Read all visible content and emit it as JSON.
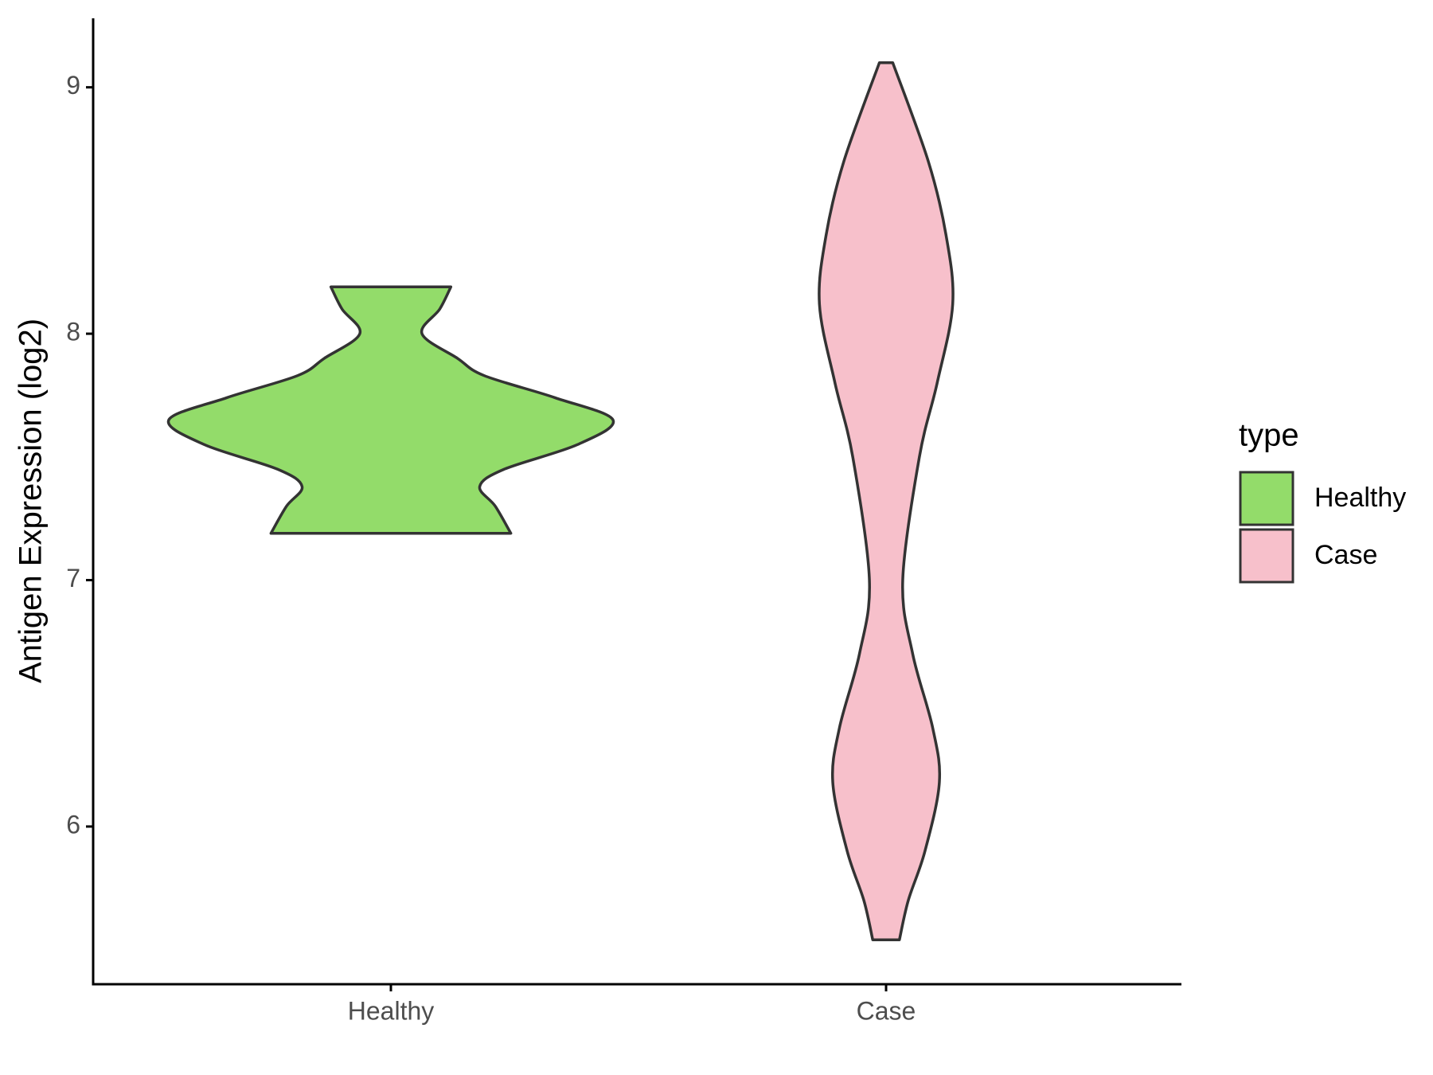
{
  "chart_data": {
    "type": "violin",
    "y_label": "Antigen Expression (log2)",
    "categories": [
      "Healthy",
      "Case"
    ],
    "legend_title": "type",
    "legend": "right",
    "ylim": [
      5.36,
      9.28
    ],
    "yticks": [
      6,
      7,
      8,
      9
    ],
    "series": [
      {
        "name": "Healthy",
        "color": "#93dc6a",
        "y": [
          8.19,
          8.1,
          8.0,
          7.9,
          7.83,
          7.74,
          7.65,
          7.55,
          7.45,
          7.38,
          7.3,
          7.19
        ],
        "width": [
          0.27,
          0.22,
          0.14,
          0.3,
          0.42,
          0.74,
          1.0,
          0.84,
          0.51,
          0.4,
          0.47,
          0.54
        ]
      },
      {
        "name": "Case",
        "color": "#f7c0cb",
        "y": [
          9.1,
          8.7,
          8.4,
          8.12,
          7.8,
          7.5,
          7.0,
          6.7,
          6.4,
          6.18,
          5.9,
          5.7,
          5.54
        ],
        "width": [
          0.03,
          0.19,
          0.27,
          0.3,
          0.23,
          0.15,
          0.075,
          0.12,
          0.21,
          0.24,
          0.175,
          0.1,
          0.06
        ]
      }
    ]
  }
}
